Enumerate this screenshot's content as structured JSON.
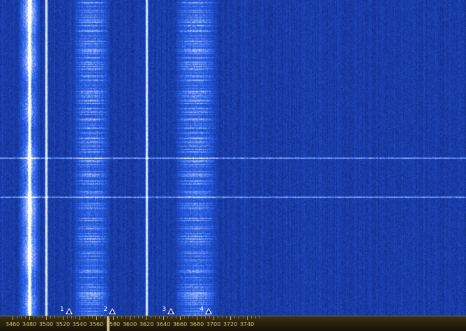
{
  "scale": {
    "labels": [
      "3460",
      "3480",
      "3500",
      "3520",
      "3540",
      "3560",
      "3580",
      "3600",
      "3620",
      "3640",
      "3660",
      "3680",
      "3700",
      "3720",
      "3740"
    ],
    "start": 3460,
    "step": 20,
    "cursor_value": 3574,
    "label_color": "#d9c06a"
  },
  "markers": [
    {
      "number": "1",
      "value": 3530,
      "icon": "triangle-marker-icon"
    },
    {
      "number": "2",
      "value": 3582,
      "icon": "triangle-marker-icon"
    },
    {
      "number": "3",
      "value": 3652,
      "icon": "triangle-marker-icon"
    },
    {
      "number": "4",
      "value": 3697,
      "icon": "triangle-marker-icon"
    }
  ],
  "waterfall": {
    "background_color": "#0b1a6e",
    "strong_signal_color": "#ffffff",
    "carrier_values": [
      3480,
      3500,
      3620
    ],
    "busy_bands": [
      [
        3532,
        3576
      ],
      [
        3652,
        3705
      ]
    ]
  }
}
